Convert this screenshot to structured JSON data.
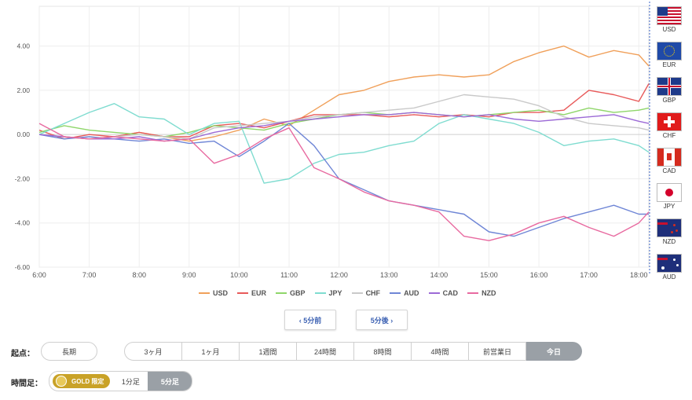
{
  "chart_data": {
    "type": "line",
    "y_ticks": [
      "4.00",
      "2.00",
      "0.00",
      "-2.00",
      "-4.00",
      "-6.00"
    ],
    "x_ticks": [
      "6:00",
      "7:00",
      "8:00",
      "9:00",
      "10:00",
      "11:00",
      "12:00",
      "13:00",
      "14:00",
      "15:00",
      "16:00",
      "17:00",
      "18:00"
    ],
    "ylim": [
      -6.0,
      5.8
    ],
    "grid": true,
    "x": [
      0,
      0.5,
      1,
      1.5,
      2,
      2.5,
      3,
      3.5,
      4,
      4.5,
      5,
      5.5,
      6,
      6.5,
      7,
      7.5,
      8,
      8.5,
      9,
      9.5,
      10,
      10.5,
      11,
      11.5,
      12,
      12.2
    ],
    "series": [
      {
        "name": "USD",
        "color": "#f0a05a",
        "values": [
          0,
          -0.1,
          -0.2,
          -0.1,
          0.1,
          -0.1,
          -0.3,
          -0.1,
          0.2,
          0.7,
          0.4,
          1.1,
          1.8,
          2.0,
          2.4,
          2.6,
          2.7,
          2.6,
          2.7,
          3.3,
          3.7,
          4.0,
          3.5,
          3.8,
          3.6,
          3.1
        ]
      },
      {
        "name": "EUR",
        "color": "#e85a5a",
        "values": [
          0.2,
          -0.2,
          0,
          -0.1,
          0.1,
          -0.1,
          -0.1,
          0.4,
          0.5,
          0.3,
          0.6,
          0.9,
          0.9,
          0.9,
          0.8,
          0.9,
          0.8,
          0.9,
          0.8,
          1.0,
          1.0,
          1.1,
          2.0,
          1.8,
          1.5,
          2.3
        ]
      },
      {
        "name": "GBP",
        "color": "#8fd66a",
        "values": [
          0.1,
          0.4,
          0.2,
          0.1,
          0,
          -0.1,
          0.1,
          0.4,
          0.3,
          0.2,
          0.5,
          0.7,
          0.9,
          1.0,
          0.9,
          1.0,
          0.9,
          0.8,
          0.9,
          1.0,
          1.1,
          0.9,
          1.2,
          1.0,
          1.1,
          1.2
        ]
      },
      {
        "name": "JPY",
        "color": "#7fdcd0",
        "values": [
          0,
          0.5,
          1.0,
          1.4,
          0.8,
          0.7,
          0,
          0.5,
          0.6,
          -2.2,
          -2.0,
          -1.3,
          -0.9,
          -0.8,
          -0.5,
          -0.3,
          0.5,
          0.9,
          0.7,
          0.5,
          0.1,
          -0.5,
          -0.3,
          -0.2,
          -0.5,
          -0.8
        ]
      },
      {
        "name": "CHF",
        "color": "#c9c9c9",
        "values": [
          0,
          -0.1,
          -0.2,
          -0.1,
          0,
          -0.1,
          -0.2,
          0.3,
          0.4,
          0.5,
          0.6,
          0.8,
          0.9,
          1.0,
          1.1,
          1.2,
          1.5,
          1.8,
          1.7,
          1.6,
          1.3,
          0.8,
          0.5,
          0.4,
          0.3,
          0.2
        ]
      },
      {
        "name": "AUD",
        "color": "#6f86d6",
        "values": [
          0,
          -0.2,
          -0.1,
          -0.2,
          -0.3,
          -0.2,
          -0.4,
          -0.3,
          -1.0,
          -0.3,
          0.5,
          -0.5,
          -2.0,
          -2.5,
          -3.0,
          -3.2,
          -3.4,
          -3.6,
          -4.4,
          -4.6,
          -4.2,
          -3.8,
          -3.5,
          -3.2,
          -3.6,
          -3.6
        ]
      },
      {
        "name": "CAD",
        "color": "#9c6ad6",
        "values": [
          0,
          -0.1,
          -0.2,
          -0.2,
          -0.1,
          -0.3,
          -0.2,
          0.1,
          0.3,
          0.4,
          0.6,
          0.7,
          0.8,
          0.9,
          0.9,
          1.0,
          0.9,
          0.8,
          0.9,
          0.7,
          0.6,
          0.7,
          0.8,
          0.9,
          0.6,
          0.5
        ]
      },
      {
        "name": "NZD",
        "color": "#e86aa0",
        "values": [
          0.5,
          -0.1,
          -0.2,
          -0.1,
          -0.2,
          -0.3,
          -0.2,
          -1.3,
          -0.9,
          -0.2,
          0.3,
          -1.5,
          -2.0,
          -2.6,
          -3.0,
          -3.2,
          -3.5,
          -4.6,
          -4.8,
          -4.5,
          -4.0,
          -3.7,
          -4.2,
          -4.6,
          -4.0,
          -3.5
        ]
      }
    ]
  },
  "flags": [
    {
      "code": "USD",
      "icon": "us-flag-icon"
    },
    {
      "code": "EUR",
      "icon": "eu-flag-icon"
    },
    {
      "code": "GBP",
      "icon": "uk-flag-icon"
    },
    {
      "code": "CHF",
      "icon": "swiss-flag-icon"
    },
    {
      "code": "CAD",
      "icon": "canada-flag-icon"
    },
    {
      "code": "JPY",
      "icon": "japan-flag-icon"
    },
    {
      "code": "NZD",
      "icon": "nz-flag-icon"
    },
    {
      "code": "AUD",
      "icon": "au-flag-icon"
    }
  ],
  "legend": [
    "USD",
    "EUR",
    "GBP",
    "JPY",
    "CHF",
    "AUD",
    "CAD",
    "NZD"
  ],
  "nav": {
    "prev": "‹ 5分前",
    "next": "5分後 ›"
  },
  "start": {
    "label": "起点：",
    "options": [
      "長期",
      "3ヶ月",
      "1ヶ月",
      "1週間",
      "24時間",
      "8時間",
      "4時間",
      "前営業日",
      "今日"
    ]
  },
  "timeframe": {
    "label": "時間足：",
    "gold_label": "GOLD 限定",
    "options": [
      "1分足",
      "5分足"
    ]
  }
}
